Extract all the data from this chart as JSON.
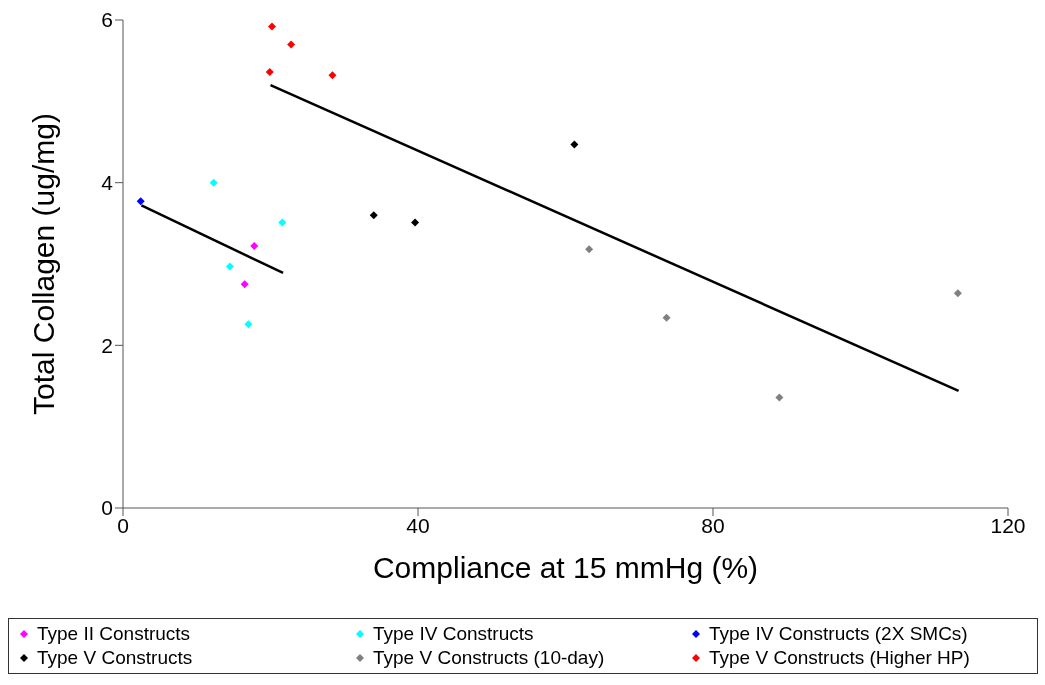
{
  "chart_data": {
    "type": "scatter",
    "xlabel": "Compliance at 15 mmHg (%)",
    "ylabel": "Total Collagen (ug/mg)",
    "xlim": [
      0,
      120
    ],
    "xticks": [
      0,
      40,
      80,
      120
    ],
    "ylim": [
      0,
      6
    ],
    "yticks": [
      0,
      2,
      4,
      6
    ],
    "grid": false,
    "legend": "bottom",
    "marker": "diamond",
    "series": [
      {
        "name": "Type II Constructs",
        "color": "#ff00ff",
        "x": [
          17.8,
          16.5
        ],
        "values": [
          3.22,
          2.75
        ]
      },
      {
        "name": "Type IV Constructs",
        "color": "#00ffff",
        "x": [
          12.3,
          21.6,
          14.5,
          17.0
        ],
        "values": [
          4.0,
          3.51,
          2.97,
          2.26
        ]
      },
      {
        "name": "Type IV Constructs (2X SMCs)",
        "color": "#0000ff",
        "x": [
          2.4
        ],
        "values": [
          3.77
        ]
      },
      {
        "name": "Type V Constructs",
        "color": "#000000",
        "x": [
          34.0,
          39.6,
          61.2
        ],
        "values": [
          3.6,
          3.51,
          4.47
        ]
      },
      {
        "name": "Type V Constructs (10-day)",
        "color": "#808080",
        "x": [
          63.2,
          73.7,
          89.0,
          113.2
        ],
        "values": [
          3.18,
          2.34,
          1.36,
          2.64
        ]
      },
      {
        "name": "Type V Constructs (Higher HP)",
        "color": "#ff0000",
        "x": [
          20.2,
          22.8,
          19.9,
          28.4
        ],
        "values": [
          5.92,
          5.7,
          5.36,
          5.32
        ]
      },
      {
        "type": "line",
        "color": "#000000",
        "marker": "none",
        "x": [
          2.5,
          21.7
        ],
        "values": [
          3.72,
          2.89
        ]
      },
      {
        "type": "line",
        "color": "#000000",
        "marker": "none",
        "x": [
          20.0,
          113.3
        ],
        "values": [
          5.2,
          1.44
        ]
      }
    ]
  }
}
